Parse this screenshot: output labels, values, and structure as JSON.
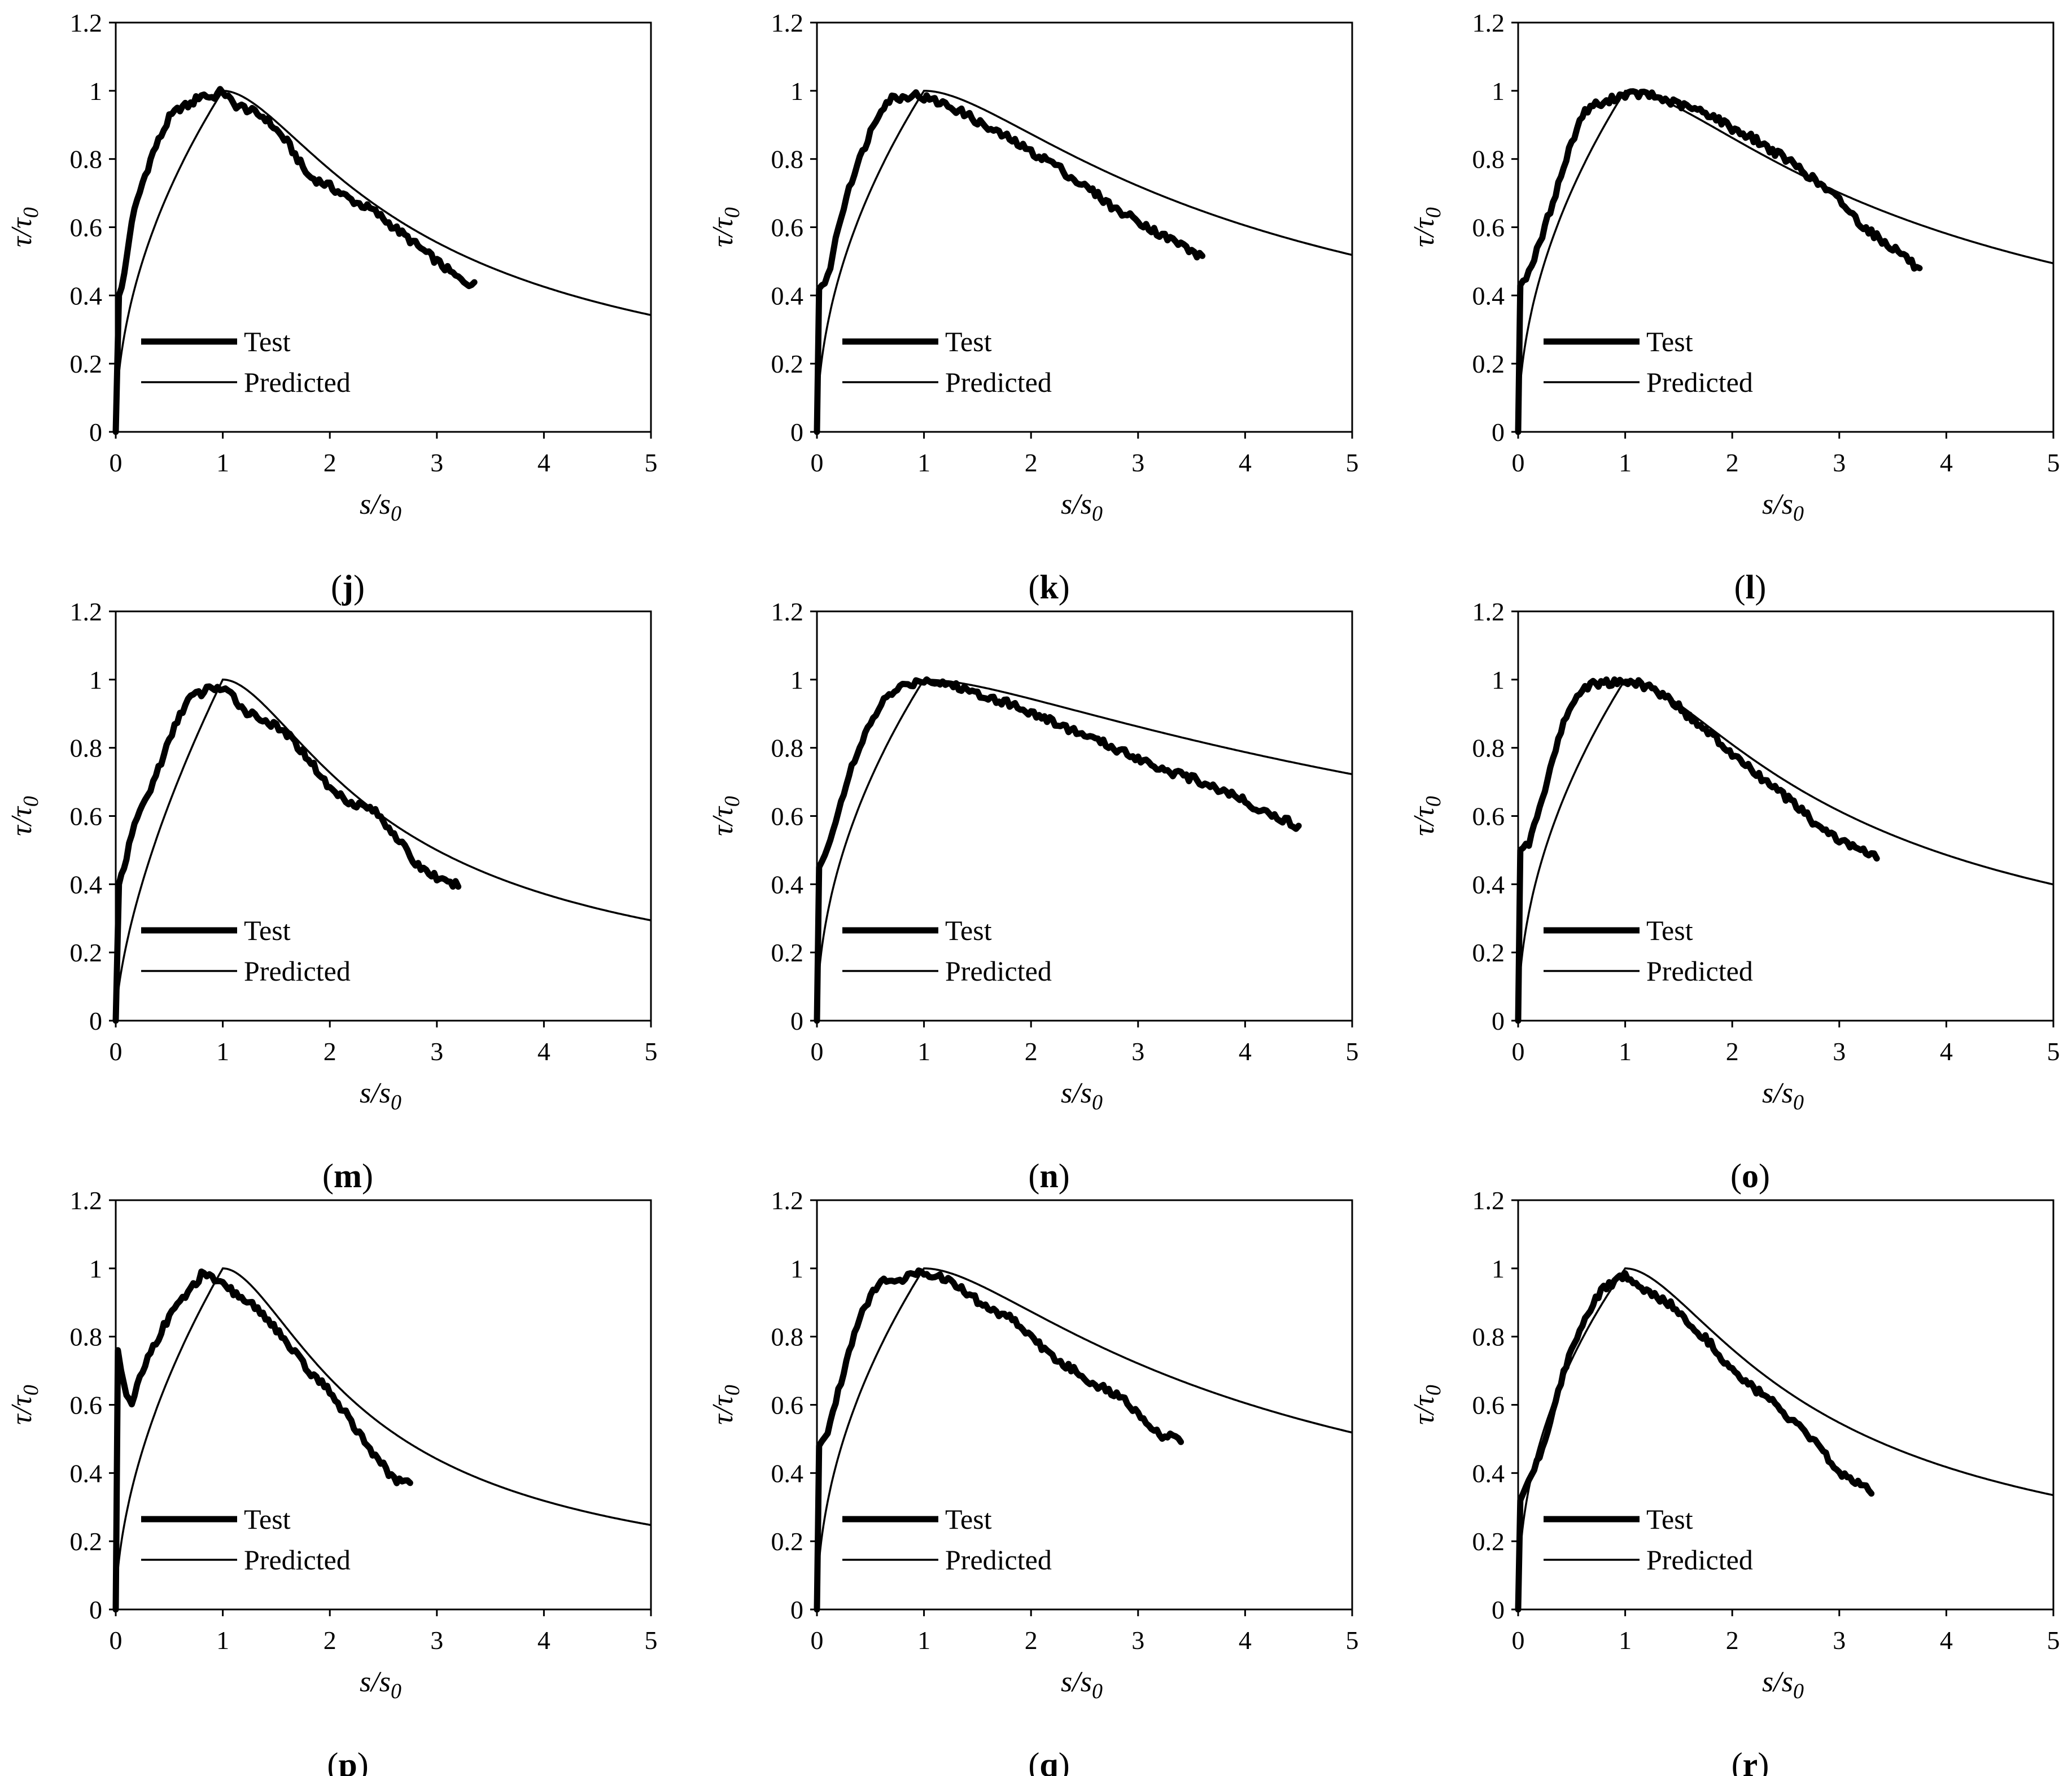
{
  "chart_data": [
    {
      "panel": "j",
      "caption_letter": "j",
      "type": "line",
      "xlabel": "s/s0",
      "ylabel": "τ/τ0",
      "xlim": [
        0,
        5
      ],
      "ylim": [
        0,
        1.2
      ],
      "x_ticks": [
        "0",
        "1",
        "2",
        "3",
        "4",
        "5"
      ],
      "y_ticks": [
        "0",
        "0.2",
        "0.4",
        "0.6",
        "0.8",
        "1",
        "1.2"
      ],
      "legend": [
        "Test",
        "Predicted"
      ],
      "legend_position": "bottom-left",
      "predicted": {
        "rise_exponent": 0.5,
        "decay_param": 0.6
      },
      "test": {
        "x": [
          0,
          0.03,
          0.08,
          0.15,
          0.25,
          0.35,
          0.5,
          0.6,
          0.7,
          0.8,
          0.9,
          1.0,
          1.1,
          1.2,
          1.4,
          1.6,
          1.8,
          2.0,
          2.2,
          2.4,
          2.6,
          2.8,
          3.0,
          3.2,
          3.35
        ],
        "y": [
          0,
          0.4,
          0.46,
          0.62,
          0.73,
          0.82,
          0.92,
          0.95,
          0.96,
          0.99,
          0.98,
          1.0,
          0.96,
          0.95,
          0.92,
          0.85,
          0.75,
          0.72,
          0.68,
          0.65,
          0.6,
          0.55,
          0.5,
          0.45,
          0.43
        ]
      }
    },
    {
      "panel": "k",
      "caption_letter": "k",
      "type": "line",
      "xlabel": "s/s0",
      "ylabel": "τ/τ0",
      "xlim": [
        0,
        5
      ],
      "ylim": [
        0,
        1.2
      ],
      "x_ticks": [
        "0",
        "1",
        "2",
        "3",
        "4",
        "5"
      ],
      "y_ticks": [
        "0",
        "0.2",
        "0.4",
        "0.6",
        "0.8",
        "1",
        "1.2"
      ],
      "legend": [
        "Test",
        "Predicted"
      ],
      "legend_position": "bottom-left",
      "predicted": {
        "rise_exponent": 0.5,
        "decay_param": 0.29
      },
      "test": {
        "x": [
          0,
          0.02,
          0.1,
          0.2,
          0.3,
          0.4,
          0.5,
          0.6,
          0.7,
          0.8,
          0.9,
          1.0,
          1.2,
          1.4,
          1.6,
          1.8,
          2.0,
          2.2,
          2.4,
          2.6,
          2.8,
          3.0,
          3.2,
          3.4,
          3.6
        ],
        "y": [
          0,
          0.42,
          0.45,
          0.6,
          0.72,
          0.8,
          0.88,
          0.95,
          0.98,
          0.98,
          0.99,
          0.98,
          0.96,
          0.93,
          0.89,
          0.86,
          0.82,
          0.79,
          0.74,
          0.7,
          0.65,
          0.62,
          0.58,
          0.55,
          0.51
        ]
      }
    },
    {
      "panel": "l",
      "caption_letter": "l",
      "type": "line",
      "xlabel": "s/s0",
      "ylabel": "τ/τ0",
      "xlim": [
        0,
        5
      ],
      "ylim": [
        0,
        1.2
      ],
      "x_ticks": [
        "0",
        "1",
        "2",
        "3",
        "4",
        "5"
      ],
      "y_ticks": [
        "0",
        "0.2",
        "0.4",
        "0.6",
        "0.8",
        "1",
        "1.2"
      ],
      "legend": [
        "Test",
        "Predicted"
      ],
      "legend_position": "bottom-left",
      "predicted": {
        "rise_exponent": 0.5,
        "decay_param": 0.32
      },
      "test": {
        "x": [
          0,
          0.02,
          0.1,
          0.2,
          0.3,
          0.4,
          0.5,
          0.6,
          0.7,
          0.8,
          0.9,
          1.0,
          1.2,
          1.4,
          1.6,
          1.8,
          2.0,
          2.2,
          2.4,
          2.6,
          2.8,
          3.0,
          3.2,
          3.4,
          3.6,
          3.75
        ],
        "y": [
          0,
          0.43,
          0.47,
          0.55,
          0.65,
          0.75,
          0.85,
          0.93,
          0.96,
          0.96,
          0.98,
          0.99,
          0.99,
          0.97,
          0.95,
          0.93,
          0.89,
          0.86,
          0.82,
          0.78,
          0.73,
          0.68,
          0.61,
          0.56,
          0.52,
          0.47
        ]
      }
    },
    {
      "panel": "m",
      "caption_letter": "m",
      "type": "line",
      "xlabel": "s/s0",
      "ylabel": "τ/τ0",
      "xlim": [
        0,
        5
      ],
      "ylim": [
        0,
        1.2
      ],
      "x_ticks": [
        "0",
        "1",
        "2",
        "3",
        "4",
        "5"
      ],
      "y_ticks": [
        "0",
        "0.2",
        "0.4",
        "0.6",
        "0.8",
        "1",
        "1.2"
      ],
      "legend": [
        "Test",
        "Predicted"
      ],
      "legend_position": "bottom-left",
      "predicted": {
        "rise_exponent": 0.65,
        "decay_param": 0.75
      },
      "test": {
        "x": [
          0,
          0.03,
          0.1,
          0.2,
          0.3,
          0.4,
          0.5,
          0.6,
          0.7,
          0.8,
          0.9,
          1.0,
          1.1,
          1.2,
          1.4,
          1.6,
          1.8,
          2.0,
          2.2,
          2.4,
          2.6,
          2.8,
          3.0,
          3.1,
          3.2
        ],
        "y": [
          0,
          0.4,
          0.48,
          0.6,
          0.66,
          0.74,
          0.82,
          0.9,
          0.95,
          0.96,
          0.98,
          0.97,
          0.95,
          0.91,
          0.88,
          0.84,
          0.77,
          0.68,
          0.64,
          0.62,
          0.55,
          0.46,
          0.42,
          0.4,
          0.4
        ]
      }
    },
    {
      "panel": "n",
      "caption_letter": "n",
      "type": "line",
      "xlabel": "s/s0",
      "ylabel": "τ/τ0",
      "xlim": [
        0,
        5
      ],
      "ylim": [
        0,
        1.2
      ],
      "x_ticks": [
        "0",
        "1",
        "2",
        "3",
        "4",
        "5"
      ],
      "y_ticks": [
        "0",
        "0.2",
        "0.4",
        "0.6",
        "0.8",
        "1",
        "1.2"
      ],
      "legend": [
        "Test",
        "Predicted"
      ],
      "legend_position": "bottom-left",
      "predicted": {
        "rise_exponent": 0.5,
        "decay_param": 0.12
      },
      "test": {
        "x": [
          0,
          0.02,
          0.1,
          0.2,
          0.3,
          0.4,
          0.5,
          0.6,
          0.7,
          0.8,
          0.9,
          1.0,
          1.2,
          1.5,
          1.8,
          2.1,
          2.4,
          2.7,
          3.0,
          3.3,
          3.6,
          3.9,
          4.2,
          4.5
        ],
        "y": [
          0,
          0.45,
          0.5,
          0.62,
          0.72,
          0.8,
          0.87,
          0.93,
          0.96,
          0.98,
          0.99,
          1.0,
          0.99,
          0.96,
          0.93,
          0.89,
          0.85,
          0.81,
          0.77,
          0.73,
          0.7,
          0.66,
          0.61,
          0.57
        ]
      }
    },
    {
      "panel": "o",
      "caption_letter": "o",
      "type": "line",
      "xlabel": "s/s0",
      "ylabel": "τ/τ0",
      "xlim": [
        0,
        5
      ],
      "ylim": [
        0,
        1.2
      ],
      "x_ticks": [
        "0",
        "1",
        "2",
        "3",
        "4",
        "5"
      ],
      "y_ticks": [
        "0",
        "0.2",
        "0.4",
        "0.6",
        "0.8",
        "1",
        "1.2"
      ],
      "legend": [
        "Test",
        "Predicted"
      ],
      "legend_position": "bottom-left",
      "predicted": {
        "rise_exponent": 0.5,
        "decay_param": 0.47
      },
      "test": {
        "x": [
          0,
          0.02,
          0.1,
          0.2,
          0.3,
          0.4,
          0.5,
          0.6,
          0.7,
          0.8,
          0.9,
          1.0,
          1.2,
          1.4,
          1.6,
          1.8,
          2.0,
          2.2,
          2.4,
          2.6,
          2.8,
          3.0,
          3.2,
          3.35
        ],
        "y": [
          0,
          0.5,
          0.52,
          0.62,
          0.74,
          0.85,
          0.93,
          0.97,
          0.99,
          0.99,
          0.99,
          1.0,
          0.98,
          0.95,
          0.89,
          0.84,
          0.78,
          0.73,
          0.68,
          0.63,
          0.57,
          0.53,
          0.5,
          0.48
        ]
      }
    },
    {
      "panel": "p",
      "caption_letter": "p",
      "type": "line",
      "xlabel": "s/s0",
      "ylabel": "τ/τ0",
      "xlim": [
        0,
        5
      ],
      "ylim": [
        0,
        1.2
      ],
      "x_ticks": [
        "0",
        "1",
        "2",
        "3",
        "4",
        "5"
      ],
      "y_ticks": [
        "0",
        "0.2",
        "0.4",
        "0.6",
        "0.8",
        "1",
        "1.2"
      ],
      "legend": [
        "Test",
        "Predicted"
      ],
      "legend_position": "bottom-left",
      "predicted": {
        "rise_exponent": 0.55,
        "decay_param": 0.95
      },
      "test": {
        "x": [
          0,
          0.02,
          0.05,
          0.1,
          0.15,
          0.2,
          0.3,
          0.4,
          0.5,
          0.6,
          0.7,
          0.8,
          0.9,
          1.0,
          1.2,
          1.4,
          1.6,
          1.8,
          2.0,
          2.2,
          2.4,
          2.5,
          2.6,
          2.7,
          2.75
        ],
        "y": [
          0,
          0.76,
          0.7,
          0.62,
          0.6,
          0.66,
          0.74,
          0.8,
          0.86,
          0.9,
          0.94,
          0.98,
          0.97,
          0.95,
          0.91,
          0.86,
          0.78,
          0.7,
          0.64,
          0.55,
          0.46,
          0.42,
          0.38,
          0.37,
          0.37
        ]
      }
    },
    {
      "panel": "q",
      "caption_letter": "q",
      "type": "line",
      "xlabel": "s/s0",
      "ylabel": "τ/τ0",
      "xlim": [
        0,
        5
      ],
      "ylim": [
        0,
        1.2
      ],
      "x_ticks": [
        "0",
        "1",
        "2",
        "3",
        "4",
        "5"
      ],
      "y_ticks": [
        "0",
        "0.2",
        "0.4",
        "0.6",
        "0.8",
        "1",
        "1.2"
      ],
      "legend": [
        "Test",
        "Predicted"
      ],
      "legend_position": "bottom-left",
      "predicted": {
        "rise_exponent": 0.5,
        "decay_param": 0.29
      },
      "test": {
        "x": [
          0,
          0.02,
          0.1,
          0.2,
          0.3,
          0.4,
          0.5,
          0.6,
          0.7,
          0.8,
          0.9,
          1.0,
          1.2,
          1.4,
          1.6,
          1.8,
          2.0,
          2.2,
          2.4,
          2.6,
          2.8,
          3.0,
          3.1,
          3.2,
          3.4
        ],
        "y": [
          0,
          0.48,
          0.52,
          0.64,
          0.76,
          0.86,
          0.92,
          0.96,
          0.97,
          0.97,
          0.98,
          0.99,
          0.97,
          0.93,
          0.88,
          0.86,
          0.8,
          0.74,
          0.7,
          0.66,
          0.63,
          0.58,
          0.54,
          0.51,
          0.5
        ]
      }
    },
    {
      "panel": "r",
      "caption_letter": "r",
      "type": "line",
      "xlabel": "s/s0",
      "ylabel": "τ/τ0",
      "xlim": [
        0,
        5
      ],
      "ylim": [
        0,
        1.2
      ],
      "x_ticks": [
        "0",
        "1",
        "2",
        "3",
        "4",
        "5"
      ],
      "y_ticks": [
        "0",
        "0.2",
        "0.4",
        "0.6",
        "0.8",
        "1",
        "1.2"
      ],
      "legend": [
        "Test",
        "Predicted"
      ],
      "legend_position": "bottom-left",
      "predicted": {
        "rise_exponent": 0.45,
        "decay_param": 0.62
      },
      "test": {
        "x": [
          0,
          0.02,
          0.1,
          0.2,
          0.3,
          0.4,
          0.5,
          0.6,
          0.7,
          0.8,
          0.9,
          1.0,
          1.1,
          1.2,
          1.4,
          1.6,
          1.8,
          2.0,
          2.2,
          2.4,
          2.6,
          2.8,
          3.0,
          3.2,
          3.3
        ],
        "y": [
          0,
          0.32,
          0.38,
          0.45,
          0.55,
          0.67,
          0.76,
          0.84,
          0.9,
          0.94,
          0.96,
          0.98,
          0.95,
          0.93,
          0.9,
          0.84,
          0.78,
          0.7,
          0.65,
          0.6,
          0.54,
          0.48,
          0.4,
          0.37,
          0.35
        ]
      }
    }
  ]
}
